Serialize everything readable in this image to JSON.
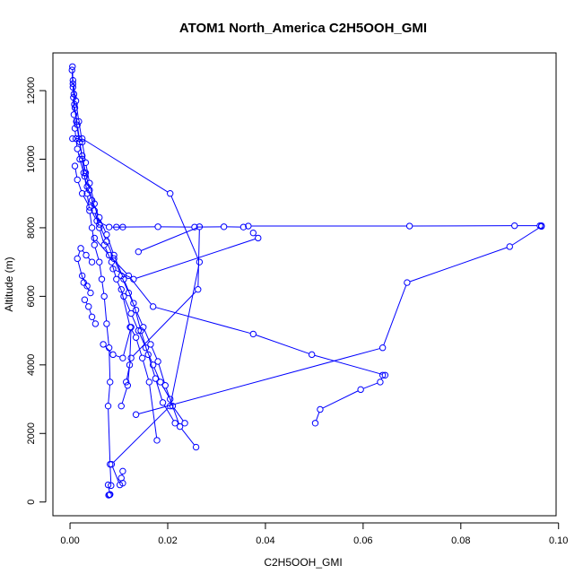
{
  "chart_data": {
    "type": "scatter",
    "title": "ATOM1 North_America C2H5OOH_GMI",
    "xlabel": "C2H5OOH_GMI",
    "ylabel": "Altitude (m)",
    "xlim": [
      -0.0035,
      0.0995
    ],
    "ylim": [
      -400,
      13100
    ],
    "xticks": [
      0.0,
      0.02,
      0.04,
      0.06,
      0.08,
      0.1
    ],
    "xtick_labels": [
      "0.00",
      "0.02",
      "0.04",
      "0.06",
      "0.08",
      "0.10"
    ],
    "yticks": [
      0,
      2000,
      4000,
      6000,
      8000,
      10000,
      12000
    ],
    "ytick_labels": [
      "0",
      "2000",
      "4000",
      "6000",
      "8000",
      "10000",
      "12000"
    ],
    "grid": false,
    "marker": "open-circle",
    "color": "#0000ff",
    "series": [
      {
        "x": [
          0.0005,
          0.0006,
          0.0007,
          0.0008,
          0.001,
          0.0012,
          0.0015,
          0.002,
          0.0028,
          0.0035,
          0.0045,
          0.006,
          0.0075,
          0.009,
          0.011,
          0.013,
          0.0145,
          0.016,
          0.0175,
          0.019,
          0.0215
        ],
        "y": [
          12700,
          12200,
          11800,
          11300,
          10900,
          10600,
          10300,
          10000,
          9600,
          9200,
          8800,
          8300,
          7800,
          7200,
          6500,
          5800,
          5000,
          4300,
          3600,
          2900,
          2300
        ]
      },
      {
        "x": [
          0.0004,
          0.0006,
          0.0009,
          0.0013,
          0.0018,
          0.0025,
          0.0032,
          0.004,
          0.005,
          0.006,
          0.007,
          0.0085,
          0.0095,
          0.011,
          0.0125,
          0.014,
          0.0155,
          0.017,
          0.0185,
          0.0205,
          0.0225,
          0.0258
        ],
        "y": [
          12600,
          12100,
          11600,
          11100,
          10600,
          10100,
          9600,
          9100,
          8500,
          8000,
          7500,
          7000,
          6500,
          6000,
          5500,
          5000,
          4500,
          4000,
          3500,
          3000,
          2200,
          1600
        ]
      },
      {
        "x": [
          0.0008,
          0.001,
          0.0015,
          0.002,
          0.0025,
          0.003,
          0.0035,
          0.004,
          0.0045,
          0.005,
          0.006,
          0.0065,
          0.007,
          0.0075,
          0.008,
          0.0082,
          0.0078,
          0.0082,
          0.0084
        ],
        "y": [
          11900,
          11500,
          11000,
          10500,
          10000,
          9500,
          9000,
          8500,
          8000,
          7500,
          7000,
          6500,
          6000,
          5200,
          4500,
          3500,
          2800,
          1100,
          480
        ]
      },
      {
        "x": [
          0.0006,
          0.0012,
          0.0018,
          0.0025,
          0.0032,
          0.004,
          0.005,
          0.006,
          0.0075,
          0.009,
          0.0105,
          0.012,
          0.0135,
          0.015,
          0.0165,
          0.018,
          0.0195,
          0.021,
          0.0235
        ],
        "y": [
          12300,
          11700,
          11100,
          10500,
          9900,
          9300,
          8700,
          8100,
          7600,
          7100,
          6600,
          6100,
          5600,
          5100,
          4600,
          4100,
          3400,
          2800,
          2300
        ]
      },
      {
        "x": [
          0.0005,
          0.0025,
          0.0205,
          0.0265,
          0.0205,
          0.0085,
          0.0102
        ],
        "y": [
          10600,
          10600,
          9000,
          7000,
          2800,
          1100,
          500
        ]
      },
      {
        "x": [
          0.001,
          0.0015,
          0.0025,
          0.004,
          0.0055,
          0.008,
          0.0108
        ],
        "y": [
          9800,
          9400,
          9000,
          8600,
          8200,
          8020,
          8020
        ]
      },
      {
        "x": [
          0.0095,
          0.018,
          0.0255,
          0.0315,
          0.0355,
          0.0365,
          0.0695,
          0.091,
          0.0962,
          0.0965
        ],
        "y": [
          8020,
          8030,
          8020,
          8030,
          8020,
          8050,
          8050,
          8060,
          8060,
          8060
        ]
      },
      {
        "x": [
          0.0965,
          0.09,
          0.069,
          0.064,
          0.0135
        ],
        "y": [
          8040,
          7450,
          6400,
          4500,
          2550
        ]
      },
      {
        "x": [
          0.005,
          0.008,
          0.012,
          0.017,
          0.0375,
          0.0495,
          0.0645
        ],
        "y": [
          7700,
          7200,
          6600,
          5700,
          4900,
          4300,
          3700
        ]
      },
      {
        "x": [
          0.064,
          0.0635,
          0.0595,
          0.0512,
          0.0502
        ],
        "y": [
          3700,
          3500,
          3280,
          2700,
          2300
        ]
      },
      {
        "x": [
          0.0088,
          0.013,
          0.0385,
          0.0375
        ],
        "y": [
          6800,
          6500,
          7700,
          7850
        ]
      },
      {
        "x": [
          0.014,
          0.0265,
          0.0262,
          0.0125,
          0.0115
        ],
        "y": [
          7300,
          8030,
          6200,
          4200,
          3500
        ]
      },
      {
        "x": [
          0.0105,
          0.0123,
          0.0135,
          0.0148,
          0.0162,
          0.0178
        ],
        "y": [
          6200,
          5100,
          4800,
          4200,
          3500,
          1800
        ]
      },
      {
        "x": [
          0.0068,
          0.0088,
          0.0108,
          0.0125,
          0.0122,
          0.0118,
          0.0105
        ],
        "y": [
          4600,
          4300,
          4200,
          5100,
          4000,
          3400,
          2800
        ]
      },
      {
        "x": [
          0.0078,
          0.0082,
          0.0079,
          0.0081
        ],
        "y": [
          500,
          220,
          200,
          210
        ]
      },
      {
        "x": [
          0.0108,
          0.0105,
          0.0108
        ],
        "y": [
          900,
          700,
          550
        ]
      },
      {
        "x": [
          0.0025,
          0.0035,
          0.0042,
          0.0028,
          0.0015,
          0.0022,
          0.0033,
          0.0045
        ],
        "y": [
          6600,
          6300,
          6100,
          6400,
          7100,
          7400,
          7200,
          7000
        ]
      },
      {
        "x": [
          0.003,
          0.0038,
          0.0045,
          0.0052
        ],
        "y": [
          5900,
          5700,
          5400,
          5200
        ]
      }
    ]
  }
}
